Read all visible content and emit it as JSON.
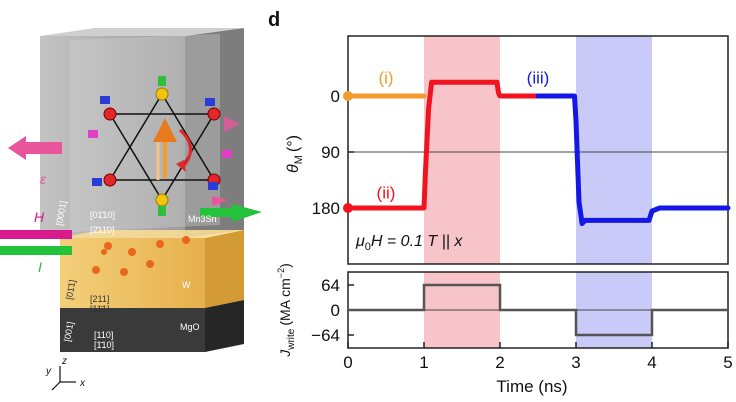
{
  "figure": {
    "panel_letter": "d",
    "schematic": {
      "layers": [
        "Mn3Sn",
        "W",
        "MgO"
      ],
      "arrow_labels": {
        "epsilon": "ε",
        "field": "H",
        "current": "I"
      },
      "direction_labels": [
        "[0001]",
        "[01̄10]",
        "[2̄11̄0]",
        "[01̄1]",
        "[211]",
        "[11̄1]",
        "[001]",
        "[110]",
        "[1̄10]"
      ],
      "axes": [
        "x",
        "y",
        "z"
      ],
      "colors": {
        "epsilon": "#e8559a",
        "field": "#d81b8c",
        "current": "#22c23a",
        "mn3sn": "#8d8d8d",
        "w": "#e8b24a",
        "mgo": "#333333"
      }
    }
  },
  "chart_data": [
    {
      "type": "line",
      "ylabel": "θM (°)",
      "ylabel_main": "θ",
      "ylabel_sub": "M",
      "ylabel_unit": "(°)",
      "yticks": [
        0,
        90,
        180
      ],
      "ylim": [
        180,
        0
      ],
      "xlim": [
        0,
        5
      ],
      "annotation": "μ0H = 0.1 T || x",
      "annotation_parts": {
        "mu": "μ",
        "sub": "0",
        "rest": "H = 0.1 T || x"
      },
      "shaded_regions": [
        {
          "x0": 1,
          "x1": 2,
          "color": "#f4b0b8"
        },
        {
          "x0": 3,
          "x1": 4,
          "color": "#b7b8f4"
        }
      ],
      "series": [
        {
          "name": "(i)",
          "color": "#f39a2d",
          "x": [
            0,
            1
          ],
          "y": [
            0,
            0
          ]
        },
        {
          "name": "(ii)",
          "color": "#f0141e",
          "x": [
            0,
            0.5,
            1,
            1.02,
            1.06,
            1.1,
            1.3,
            1.5,
            1.7,
            1.96,
            1.98,
            2.0,
            2.1,
            2.3,
            2.5
          ],
          "y": [
            180,
            180,
            180,
            120,
            20,
            -22,
            -22,
            -22,
            -22,
            -22,
            -5,
            0,
            0,
            0,
            0
          ]
        },
        {
          "name": "(iii)",
          "color": "#1418e6",
          "x": [
            2.5,
            2.8,
            2.98,
            3.0,
            3.04,
            3.08,
            3.12,
            3.5,
            3.96,
            4.0,
            4.1,
            4.5,
            5
          ],
          "y": [
            0,
            0,
            0,
            40,
            170,
            205,
            200,
            200,
            200,
            185,
            180,
            180,
            180
          ]
        }
      ]
    },
    {
      "type": "line",
      "ylabel": "Jwrite (MA cm−2)",
      "ylabel_main": "J",
      "ylabel_sub": "write",
      "ylabel_unit": "(MA cm",
      "ylabel_sup": "−2",
      "yticks": [
        64,
        0,
        -64
      ],
      "ytick_labels": [
        "64",
        "0",
        "−64"
      ],
      "ylim": [
        -100,
        100
      ],
      "xlim": [
        0,
        5
      ],
      "xticks": [
        0,
        1,
        2,
        3,
        4,
        5
      ],
      "xlabel": "Time (ns)",
      "series": [
        {
          "name": "pulse",
          "color": "#555555",
          "x": [
            0,
            1,
            1,
            2,
            2,
            3,
            3,
            4,
            4,
            5
          ],
          "y": [
            0,
            0,
            64,
            64,
            0,
            0,
            -64,
            -64,
            0,
            0
          ]
        }
      ]
    }
  ]
}
